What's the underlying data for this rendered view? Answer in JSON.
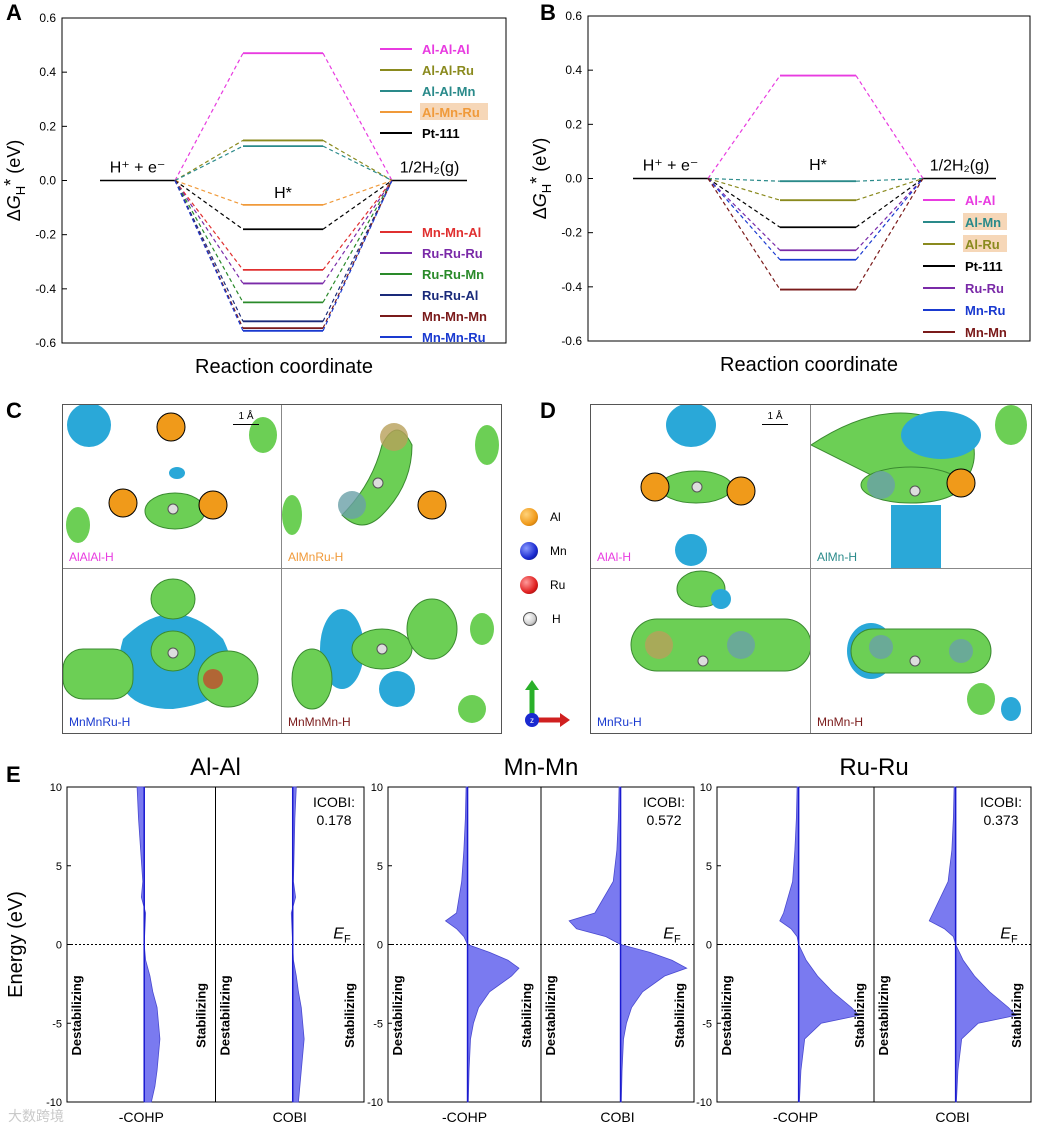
{
  "panel_A": {
    "letter": "A",
    "chart_data": {
      "type": "line",
      "title": "",
      "xlabel": "Reaction coordinate",
      "ylabel": "ΔG_H* (eV)",
      "ylim": [
        -0.6,
        0.6
      ],
      "yticks": [
        "0.6",
        "0.4",
        "0.2",
        "0.0",
        "-0.2",
        "-0.4",
        "-0.6"
      ],
      "state_labels": {
        "start": "H⁺ + e⁻",
        "middle": "H*",
        "end": "1/2H₂(g)"
      },
      "series": [
        {
          "name": "Al-Al-Al",
          "value": 0.47,
          "color": "#e83be0"
        },
        {
          "name": "Al-Al-Ru",
          "value": 0.148,
          "color": "#8a8a1e"
        },
        {
          "name": "Al-Al-Mn",
          "value": 0.127,
          "color": "#2a8a8a"
        },
        {
          "name": "Al-Mn-Ru",
          "value": -0.09,
          "color": "#f09a3a"
        },
        {
          "name": "Pt-111",
          "value": -0.18,
          "color": "#000000"
        },
        {
          "name": "Mn-Mn-Al",
          "value": -0.33,
          "color": "#e03030"
        },
        {
          "name": "Ru-Ru-Ru",
          "value": -0.38,
          "color": "#7a2aa8"
        },
        {
          "name": "Ru-Ru-Mn",
          "value": -0.45,
          "color": "#2a8a2a"
        },
        {
          "name": "Ru-Ru-Al",
          "value": -0.52,
          "color": "#1a2a7a"
        },
        {
          "name": "Mn-Mn-Mn",
          "value": -0.545,
          "color": "#7a1a1a"
        },
        {
          "name": "Mn-Mn-Ru",
          "value": -0.555,
          "color": "#1a3ad0"
        }
      ]
    }
  },
  "panel_B": {
    "letter": "B",
    "chart_data": {
      "type": "line",
      "title": "",
      "xlabel": "Reaction coordinate",
      "ylabel": "ΔG_H* (eV)",
      "ylim": [
        -0.6,
        0.6
      ],
      "yticks": [
        "0.6",
        "0.4",
        "0.2",
        "0.0",
        "-0.2",
        "-0.4",
        "-0.6"
      ],
      "state_labels": {
        "start": "H⁺ + e⁻",
        "middle": "H*",
        "end": "1/2H₂(g)"
      },
      "series": [
        {
          "name": "Al-Al",
          "value": 0.38,
          "color": "#e83be0"
        },
        {
          "name": "Al-Mn",
          "value": -0.01,
          "color": "#2a8a8a"
        },
        {
          "name": "Al-Ru",
          "value": -0.08,
          "color": "#8a8a1e"
        },
        {
          "name": "Pt-111",
          "value": -0.18,
          "color": "#000000"
        },
        {
          "name": "Ru-Ru",
          "value": -0.265,
          "color": "#7a2aa8"
        },
        {
          "name": "Mn-Ru",
          "value": -0.3,
          "color": "#1a3ad0"
        },
        {
          "name": "Mn-Mn",
          "value": -0.41,
          "color": "#7a1a1a"
        }
      ]
    }
  },
  "panel_C": {
    "letter": "C",
    "scale": "1 Å",
    "cells": [
      {
        "label": "AlAlAl-H",
        "color": "#e83be0"
      },
      {
        "label": "AlMnRu-H",
        "color": "#f09a3a"
      },
      {
        "label": "MnMnRu-H",
        "color": "#1a3ad0"
      },
      {
        "label": "MnMnMn-H",
        "color": "#7a1a1a"
      }
    ]
  },
  "legend_atoms": [
    {
      "label": "Al",
      "color": "#f09a1a"
    },
    {
      "label": "Mn",
      "color": "#1a2ad0"
    },
    {
      "label": "Ru",
      "color": "#e02020"
    },
    {
      "label": "H",
      "color": "#e8e8e8"
    }
  ],
  "axis_triad": {
    "z": "z"
  },
  "panel_D": {
    "letter": "D",
    "scale": "1 Å",
    "cells": [
      {
        "label": "AlAl-H",
        "color": "#e83be0"
      },
      {
        "label": "AlMn-H",
        "color": "#2a8a8a"
      },
      {
        "label": "MnRu-H",
        "color": "#1a3ad0"
      },
      {
        "label": "MnMn-H",
        "color": "#7a1a1a"
      }
    ]
  },
  "panel_E": {
    "letter": "E",
    "ylabel": "Energy (eV)",
    "yticks": [
      "10",
      "5",
      "0",
      "-5",
      "-10"
    ],
    "fermi_label": "E_F",
    "side_labels": {
      "left": "Destabilizing",
      "right": "Stabilizing"
    },
    "col_labels": {
      "cohp": "-COHP",
      "cobi": "COBI"
    },
    "icobi_label": "ICOBI:",
    "chart_data": [
      {
        "type": "area",
        "title": "Al-Al",
        "icobi": "0.178",
        "ylim": [
          -10,
          10
        ],
        "cohp": {
          "energy": [
            10,
            8,
            6,
            4,
            3,
            2,
            1,
            0,
            -1,
            -2,
            -3,
            -4,
            -5,
            -6,
            -7,
            -8,
            -9,
            -10
          ],
          "value": [
            -0.1,
            -0.08,
            -0.05,
            -0.02,
            -0.04,
            0.02,
            0.01,
            0,
            0.02,
            0.08,
            0.12,
            0.18,
            0.2,
            0.22,
            0.2,
            0.18,
            0.15,
            0.1
          ]
        },
        "cobi": {
          "energy": [
            10,
            8,
            6,
            4,
            3,
            2,
            1,
            0,
            -1,
            -2,
            -3,
            -4,
            -5,
            -6,
            -7,
            -8,
            -9,
            -10
          ],
          "value": [
            0.05,
            0.03,
            0.02,
            0.01,
            0.04,
            -0.02,
            -0.01,
            0,
            0.01,
            0.05,
            0.08,
            0.12,
            0.14,
            0.16,
            0.14,
            0.12,
            0.1,
            0.08
          ]
        }
      },
      {
        "type": "area",
        "title": "Mn-Mn",
        "icobi": "0.572",
        "ylim": [
          -10,
          10
        ],
        "cohp": {
          "energy": [
            10,
            8,
            6,
            4,
            2,
            1.5,
            1,
            0.5,
            0,
            -0.5,
            -1,
            -1.5,
            -2,
            -3,
            -4,
            -5,
            -6,
            -8,
            -10
          ],
          "value": [
            -0.02,
            -0.03,
            -0.05,
            -0.08,
            -0.15,
            -0.3,
            -0.15,
            -0.05,
            0,
            0.3,
            0.55,
            0.7,
            0.6,
            0.3,
            0.15,
            0.08,
            0.04,
            0.02,
            0.01
          ]
        },
        "cobi": {
          "energy": [
            10,
            8,
            6,
            4,
            2,
            1.5,
            1,
            0.5,
            0,
            -0.5,
            -1,
            -1.5,
            -2,
            -3,
            -4,
            -5,
            -6,
            -8,
            -10
          ],
          "value": [
            -0.02,
            -0.03,
            -0.05,
            -0.1,
            -0.35,
            -0.7,
            -0.6,
            -0.2,
            0,
            0.4,
            0.7,
            0.9,
            0.6,
            0.3,
            0.15,
            0.08,
            0.04,
            0.02,
            0.01
          ]
        }
      },
      {
        "type": "area",
        "title": "Ru-Ru",
        "icobi": "0.373",
        "ylim": [
          -10,
          10
        ],
        "cohp": {
          "energy": [
            10,
            8,
            6,
            4,
            2,
            1.5,
            1,
            0.5,
            0,
            -1,
            -2,
            -3,
            -4,
            -4.5,
            -5,
            -6,
            -8,
            -10
          ],
          "value": [
            -0.02,
            -0.03,
            -0.05,
            -0.08,
            -0.2,
            -0.25,
            -0.1,
            -0.02,
            0,
            0.1,
            0.25,
            0.45,
            0.7,
            0.8,
            0.3,
            0.08,
            0.03,
            0.01
          ]
        },
        "cobi": {
          "energy": [
            10,
            8,
            6,
            4,
            2,
            1.5,
            1,
            0.5,
            0,
            -1,
            -2,
            -3,
            -4,
            -4.5,
            -5,
            -6,
            -8,
            -10
          ],
          "value": [
            -0.02,
            -0.03,
            -0.05,
            -0.1,
            -0.3,
            -0.35,
            -0.15,
            -0.03,
            0,
            0.1,
            0.25,
            0.45,
            0.7,
            0.8,
            0.3,
            0.08,
            0.03,
            0.01
          ]
        }
      }
    ]
  },
  "watermark": "大数跨境"
}
